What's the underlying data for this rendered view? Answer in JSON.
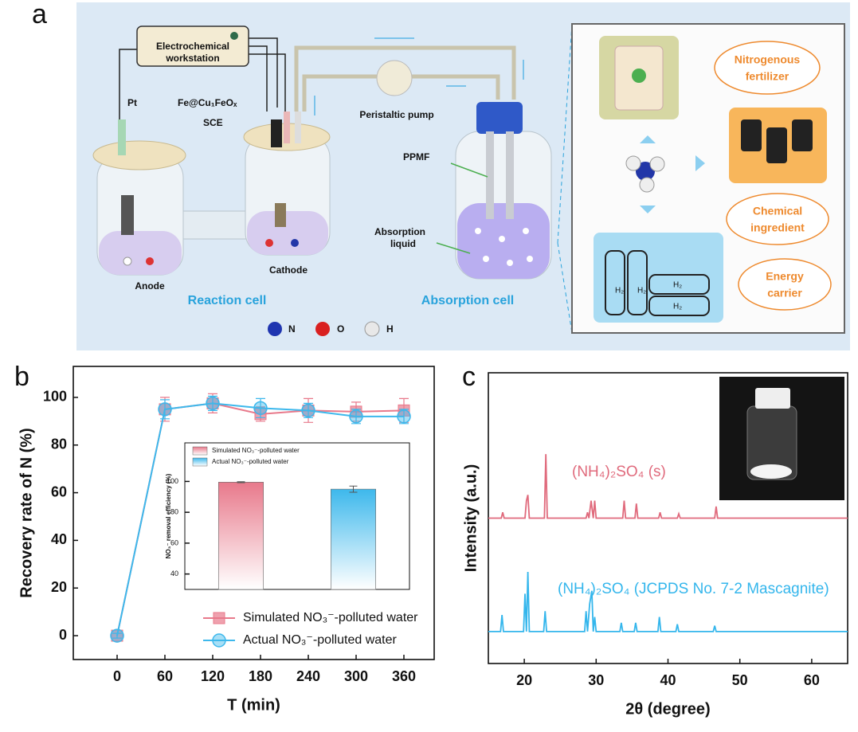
{
  "figure": {
    "panels": [
      "a",
      "b",
      "c"
    ]
  },
  "diagram": {
    "workstation": [
      "Electrochemical",
      "workstation"
    ],
    "pt": "Pt",
    "electrode": "Fe@Cu₁FeOₓ",
    "sce": "SCE",
    "pump": "Peristaltic pump",
    "ppmf": "PPMF",
    "liquid": [
      "Absorption",
      "liquid"
    ],
    "anode": "Anode",
    "cathode": "Cathode",
    "reaction_cell": "Reaction cell",
    "absorption_cell": "Absorption cell",
    "atoms": [
      "N",
      "O",
      "H"
    ],
    "uses": [
      [
        "Nitrogenous",
        "fertilizer"
      ],
      [
        "Chemical",
        "ingredient"
      ],
      [
        "Energy",
        "carrier"
      ]
    ],
    "h2": "H₂"
  },
  "chart_data": [
    {
      "type": "line",
      "xlabel": "T (min)",
      "ylabel": "Recovery rate of N (%)",
      "x": [
        0,
        60,
        120,
        180,
        240,
        300,
        360
      ],
      "xlim": [
        -55,
        398
      ],
      "xticks": [
        0,
        60,
        120,
        180,
        240,
        300,
        360
      ],
      "ylim": [
        -10,
        113
      ],
      "yticks": [
        0,
        20,
        40,
        60,
        80,
        100
      ],
      "legend": "lower right",
      "series": [
        {
          "name": "Simulated NO₃⁻-polluted water",
          "color": "#e8798b",
          "marker": "square",
          "values": [
            0,
            95,
            97.5,
            93,
            94.5,
            94,
            94.5
          ],
          "errors": [
            1,
            5,
            4,
            3,
            5,
            4,
            5
          ]
        },
        {
          "name": "Actual NO₃⁻-polluted water",
          "color": "#3db8ec",
          "marker": "circle",
          "values": [
            0,
            95,
            97.5,
            95.5,
            94.5,
            92,
            92
          ],
          "errors": [
            1,
            4,
            3,
            4,
            3,
            3,
            3
          ]
        }
      ]
    },
    {
      "type": "bar",
      "ylabel": "NO₃⁻ removal efficiency (%)",
      "ylim": [
        30,
        125
      ],
      "yticks": [
        40,
        60,
        80,
        100
      ],
      "legend": "upper left",
      "series": [
        {
          "name": "Simulated NO₃⁻-polluted water",
          "color": "#e8798b",
          "values": [
            99.5
          ],
          "errors": [
            0.3
          ]
        },
        {
          "name": "Actual NO₃⁻-polluted water",
          "color": "#3db8ec",
          "values": [
            95
          ],
          "errors": [
            2
          ]
        }
      ]
    },
    {
      "type": "line",
      "xlabel": "2θ (degree)",
      "ylabel": "Intensity (a.u.)",
      "xlim": [
        15,
        65
      ],
      "xticks": [
        20,
        30,
        40,
        50,
        60
      ],
      "ylim": [
        0,
        100
      ],
      "legend": "inline",
      "series": [
        {
          "name": "(NH₄)₂SO₄ (s)",
          "color": "#e06a7c",
          "x": [
            15,
            16.8,
            17.0,
            17.2,
            20.1,
            20.3,
            20.5,
            20.7,
            22.8,
            23.0,
            23.2,
            28.6,
            28.8,
            29.0,
            29.3,
            29.6,
            29.8,
            30.0,
            33.7,
            33.9,
            34.1,
            35.4,
            35.6,
            35.8,
            38.7,
            38.9,
            39.1,
            41.3,
            41.5,
            41.7,
            46.5,
            46.7,
            46.9,
            65
          ],
          "values": [
            50,
            50,
            52,
            50,
            50,
            56,
            58,
            50,
            50,
            72,
            50,
            50,
            52,
            50,
            56,
            50,
            56,
            50,
            50,
            56,
            50,
            50,
            55,
            50,
            50,
            52,
            50,
            50,
            51.5,
            50,
            50,
            54,
            50,
            50
          ]
        },
        {
          "name": "(NH₄)₂SO₄ (JCPDS No. 7-2 Mascagnite)",
          "color": "#34b6ec",
          "x": [
            15,
            16.7,
            16.9,
            17.1,
            19.9,
            20.1,
            20.3,
            20.5,
            20.7,
            22.7,
            22.9,
            23.1,
            28.4,
            28.6,
            28.8,
            29.1,
            29.4,
            29.6,
            29.8,
            30.0,
            33.3,
            33.5,
            33.7,
            35.3,
            35.5,
            35.7,
            38.6,
            38.8,
            39.0,
            41.1,
            41.3,
            41.5,
            46.3,
            46.5,
            46.7,
            65
          ],
          "values": [
            11,
            11,
            16.7,
            11,
            11,
            24,
            11,
            31.5,
            11,
            11,
            18,
            11,
            11,
            18,
            11,
            20.5,
            25,
            11,
            16,
            11,
            11,
            14,
            11,
            11,
            14,
            11,
            11,
            16,
            11,
            11,
            13.5,
            11,
            11,
            13,
            11,
            11
          ]
        }
      ]
    }
  ]
}
